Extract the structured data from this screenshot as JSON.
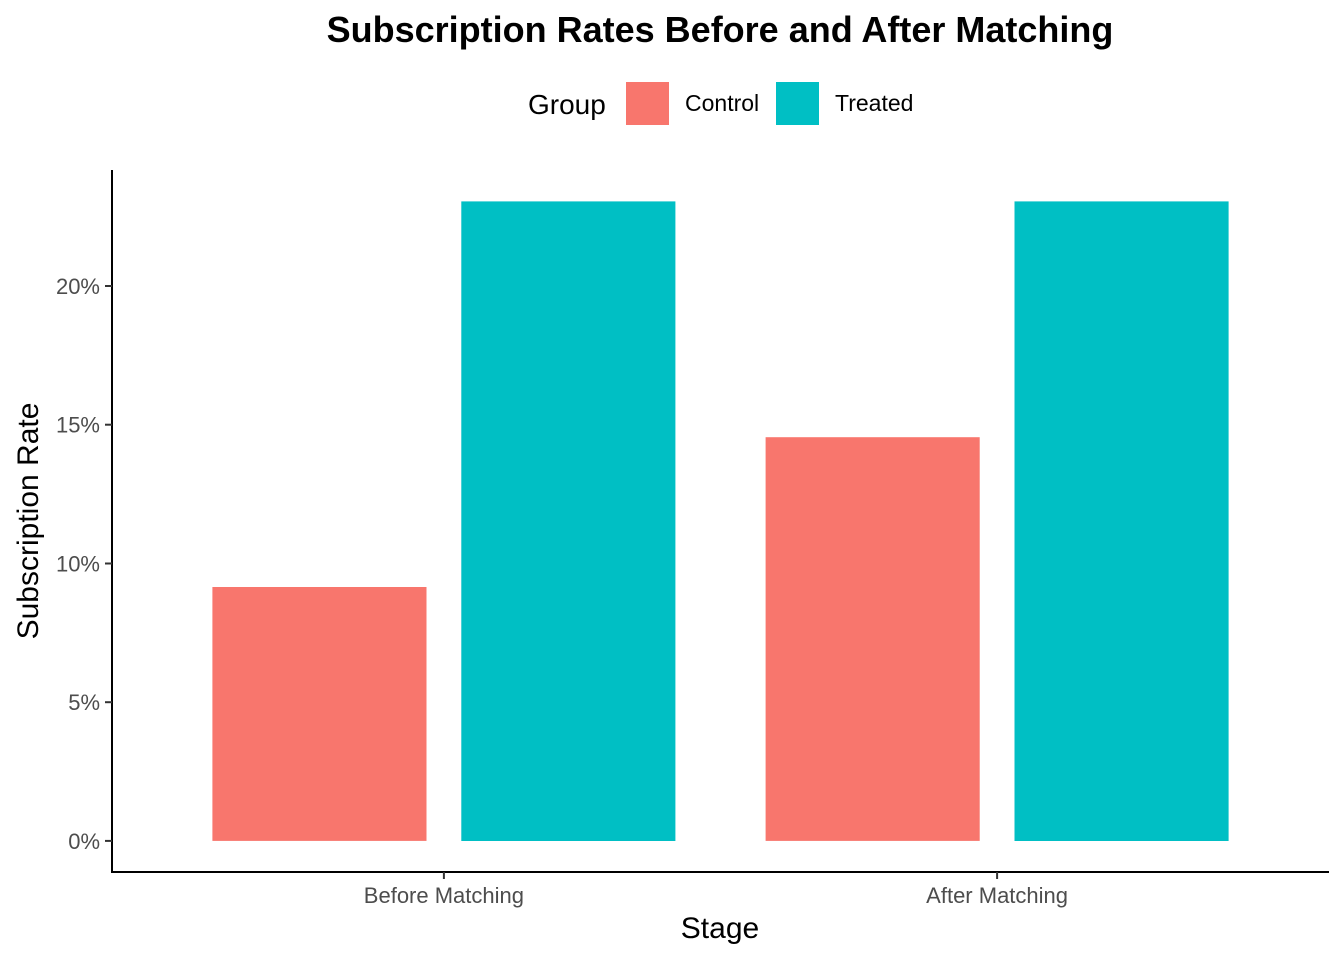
{
  "chart_data": {
    "type": "bar",
    "title": "Subscription Rates Before and After Matching",
    "xlabel": "Stage",
    "ylabel": "Subscription Rate",
    "categories": [
      "Before Matching",
      "After Matching"
    ],
    "series": [
      {
        "name": "Control",
        "color": "#F8766D",
        "values": [
          0.0915,
          0.1455
        ]
      },
      {
        "name": "Treated",
        "color": "#00BFC4",
        "values": [
          0.2305,
          0.2305
        ]
      }
    ],
    "ylim": [
      -0.0112,
      0.2418
    ],
    "yticks": [
      0,
      0.05,
      0.1,
      0.15,
      0.2
    ],
    "ytick_labels": [
      "0%",
      "5%",
      "10%",
      "15%",
      "20%"
    ],
    "legend": {
      "title": "Group",
      "position": "top"
    },
    "grid": false
  }
}
